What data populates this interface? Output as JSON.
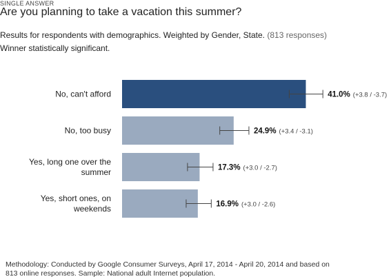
{
  "header": {
    "kicker": "SINGLE ANSWER",
    "question": "Are you planning to take a vacation this summer?",
    "subtitle_main": "Results for respondents with demographics. Weighted by Gender, State.",
    "responses": "(813 responses)",
    "significance": "Winner statistically significant."
  },
  "footer": {
    "methodology_line1": "Methodology: Conducted by Google Consumer Surveys, April 17, 2014 - April 20, 2014 and based on",
    "methodology_line2": "813 online responses. Sample: National adult Internet population."
  },
  "colors": {
    "winner_bar": "#2a4f7e",
    "other_bar": "#9aaabf"
  },
  "chart_data": {
    "type": "bar",
    "orientation": "horizontal",
    "categories": [
      [
        "No, can't afford"
      ],
      [
        "No, too busy"
      ],
      [
        "Yes, long one over the",
        "summer"
      ],
      [
        "Yes, short ones, on",
        "weekends"
      ]
    ],
    "values": [
      41.0,
      24.9,
      17.3,
      16.9
    ],
    "value_labels": [
      "41.0%",
      "24.9%",
      "17.3%",
      "16.9%"
    ],
    "ci_plus": [
      3.8,
      3.4,
      3.0,
      3.0
    ],
    "ci_minus": [
      3.7,
      3.1,
      2.7,
      2.6
    ],
    "ci_labels": [
      "(+3.8 / -3.7)",
      "(+3.4 / -3.1)",
      "(+3.0 / -2.7)",
      "(+3.0 / -2.6)"
    ],
    "winner_index": 0
  }
}
